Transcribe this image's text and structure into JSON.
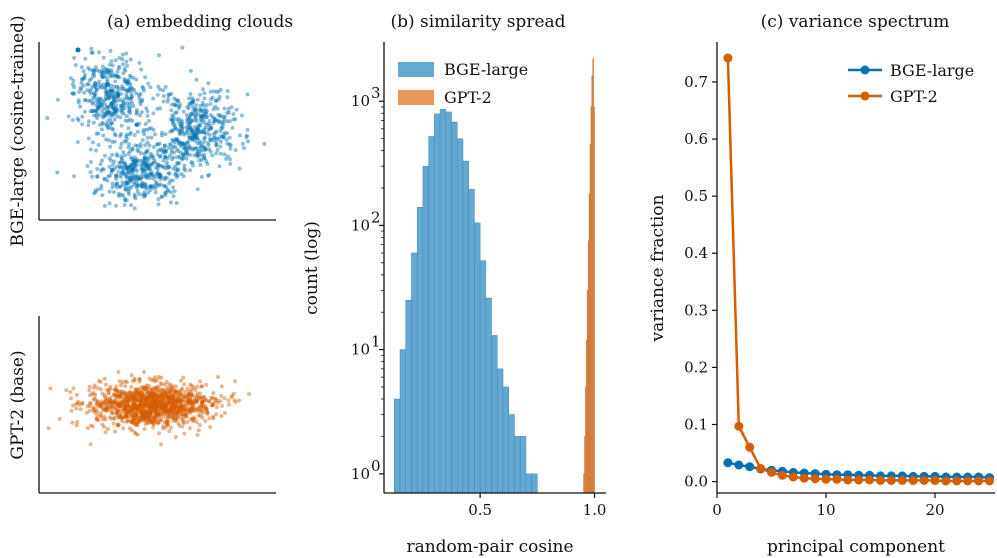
{
  "colors": {
    "bge": "#0072b2",
    "gpt2": "#d55e00",
    "bge_hist": "#63a9d2",
    "gpt2_hist": "#e8965a"
  },
  "panels": {
    "a": {
      "title": "(a) embedding clouds",
      "top_ylabel": "BGE-large (cosine-trained)",
      "bottom_ylabel": "GPT-2 (base)"
    },
    "b": {
      "title": "(b) similarity spread",
      "xlabel": "random-pair cosine",
      "ylabel": "count (log)",
      "legend": [
        "BGE-large",
        "GPT-2"
      ],
      "yticks": [
        "10",
        "10",
        "10",
        "10"
      ],
      "yexps": [
        "0",
        "1",
        "2",
        "3"
      ],
      "xticks": [
        "0.5",
        "1.0"
      ]
    },
    "c": {
      "title": "(c) variance spectrum",
      "xlabel": "principal component",
      "ylabel": "variance fraction",
      "legend": [
        "BGE-large",
        "GPT-2"
      ],
      "yticks": [
        "0.0",
        "0.1",
        "0.2",
        "0.3",
        "0.4",
        "0.5",
        "0.6",
        "0.7"
      ],
      "xticks": [
        "0",
        "10",
        "20"
      ]
    }
  },
  "chart_data": [
    {
      "type": "scatter",
      "title": "(a) embedding clouds",
      "series": [
        {
          "name": "BGE-large (cosine-trained)",
          "shape": "triangular cloud of three lobes (upper-left, right, lower-center)",
          "approx_points": 1200
        },
        {
          "name": "GPT-2 (base)",
          "shape": "flat horizontal elliptical cloud",
          "approx_points": 1200
        }
      ]
    },
    {
      "type": "bar",
      "title": "(b) similarity spread",
      "xlabel": "random-pair cosine",
      "ylabel": "count (log)",
      "yscale": "log",
      "ylim": [
        0.7,
        3000
      ],
      "xlim": [
        0.08,
        1.05
      ],
      "series": [
        {
          "name": "BGE-large",
          "bin_width": 0.025,
          "bin_starts": [
            0.125,
            0.15,
            0.175,
            0.2,
            0.225,
            0.25,
            0.275,
            0.3,
            0.325,
            0.35,
            0.375,
            0.4,
            0.425,
            0.45,
            0.475,
            0.5,
            0.525,
            0.55,
            0.575,
            0.6,
            0.625,
            0.65,
            0.675,
            0.7,
            0.725
          ],
          "values": [
            4,
            10,
            25,
            60,
            140,
            300,
            520,
            790,
            860,
            820,
            680,
            500,
            330,
            195,
            105,
            52,
            26,
            13,
            7,
            5,
            3,
            2,
            2,
            1,
            1
          ]
        },
        {
          "name": "GPT-2",
          "bin_width": 0.004,
          "bin_starts": [
            0.952,
            0.956,
            0.96,
            0.964,
            0.968,
            0.972,
            0.976,
            0.98,
            0.984,
            0.988,
            0.992,
            0.996
          ],
          "values": [
            1,
            2,
            5,
            12,
            30,
            75,
            180,
            450,
            900,
            1600,
            2200,
            900
          ]
        }
      ]
    },
    {
      "type": "line",
      "title": "(c) variance spectrum",
      "xlabel": "principal component",
      "ylabel": "variance fraction",
      "xlim": [
        0,
        25.5
      ],
      "ylim": [
        -0.02,
        0.77
      ],
      "x": [
        1,
        2,
        3,
        4,
        5,
        6,
        7,
        8,
        9,
        10,
        11,
        12,
        13,
        14,
        15,
        16,
        17,
        18,
        19,
        20,
        21,
        22,
        23,
        24,
        25
      ],
      "series": [
        {
          "name": "BGE-large",
          "values": [
            0.033,
            0.029,
            0.026,
            0.022,
            0.02,
            0.018,
            0.016,
            0.015,
            0.014,
            0.013,
            0.012,
            0.012,
            0.011,
            0.011,
            0.01,
            0.01,
            0.01,
            0.009,
            0.009,
            0.009,
            0.008,
            0.008,
            0.008,
            0.008,
            0.007
          ]
        },
        {
          "name": "GPT-2",
          "values": [
            0.742,
            0.097,
            0.06,
            0.023,
            0.016,
            0.011,
            0.008,
            0.006,
            0.005,
            0.004,
            0.004,
            0.003,
            0.003,
            0.003,
            0.002,
            0.002,
            0.002,
            0.002,
            0.002,
            0.002,
            0.001,
            0.001,
            0.001,
            0.001,
            0.001
          ]
        }
      ]
    }
  ]
}
